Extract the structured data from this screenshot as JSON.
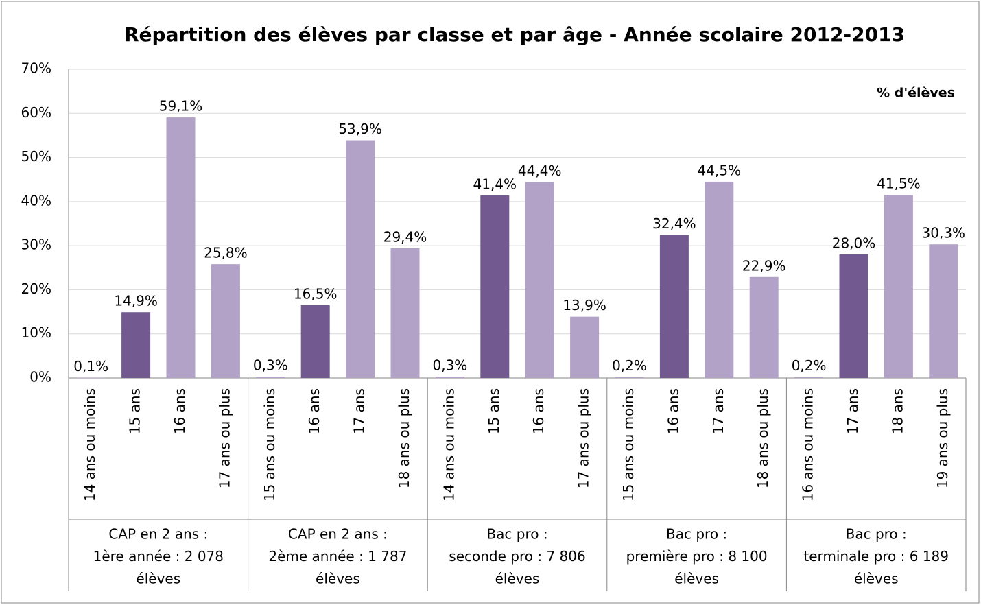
{
  "chart_data": {
    "type": "bar",
    "title": "Répartition des élèves par classe et par âge - Année scolaire 2012-2013",
    "annotation": "% d'élèves",
    "categories": [
      "14 ans ou moins",
      "15 ans",
      "16 ans",
      "17 ans ou plus",
      "15 ans ou moins",
      "16 ans",
      "17 ans",
      "18 ans ou plus",
      "14 ans ou moins",
      "15 ans",
      "16 ans",
      "17 ans ou plus",
      "15 ans ou moins",
      "16 ans",
      "17 ans",
      "18 ans ou plus",
      "16 ans ou moins",
      "17 ans",
      "18 ans",
      "19 ans ou plus"
    ],
    "groups": [
      [
        "CAP en 2 ans :",
        "1ère année : 2 078",
        "élèves"
      ],
      [
        "CAP en 2 ans :",
        "2ème année : 1 787",
        "élèves"
      ],
      [
        "Bac pro :",
        "seconde pro : 7 806",
        "élèves"
      ],
      [
        "Bac pro :",
        "première pro : 8 100",
        "élèves"
      ],
      [
        "Bac pro :",
        "terminale pro : 6 189",
        "élèves"
      ]
    ],
    "values": [
      0.1,
      14.9,
      59.1,
      25.8,
      0.3,
      16.5,
      53.9,
      29.4,
      0.3,
      41.4,
      44.4,
      13.9,
      0.2,
      32.4,
      44.5,
      22.9,
      0.2,
      28.0,
      41.5,
      30.3
    ],
    "value_labels": [
      "0,1%",
      "14,9%",
      "59,1%",
      "25,8%",
      "0,3%",
      "16,5%",
      "53,9%",
      "29,4%",
      "0,3%",
      "41,4%",
      "44,4%",
      "13,9%",
      "0,2%",
      "32,4%",
      "44,5%",
      "22,9%",
      "0,2%",
      "28,0%",
      "41,5%",
      "30,3%"
    ],
    "colors": [
      "#b2a2c7",
      "#725a91",
      "#b2a2c7",
      "#b2a2c7",
      "#b2a2c7",
      "#725a91",
      "#b2a2c7",
      "#b2a2c7",
      "#b2a2c7",
      "#725a91",
      "#b2a2c7",
      "#b2a2c7",
      "#b2a2c7",
      "#725a91",
      "#b2a2c7",
      "#b2a2c7",
      "#b2a2c7",
      "#725a91",
      "#b2a2c7",
      "#b2a2c7"
    ],
    "ylim": [
      0,
      70
    ],
    "yticks": [
      {
        "value": 0,
        "label": "0%"
      },
      {
        "value": 10,
        "label": "10%"
      },
      {
        "value": 20,
        "label": "20%"
      },
      {
        "value": 30,
        "label": "30%"
      },
      {
        "value": 40,
        "label": "40%"
      },
      {
        "value": 50,
        "label": "50%"
      },
      {
        "value": 60,
        "label": "60%"
      },
      {
        "value": 70,
        "label": "70%"
      }
    ],
    "grid": true
  }
}
